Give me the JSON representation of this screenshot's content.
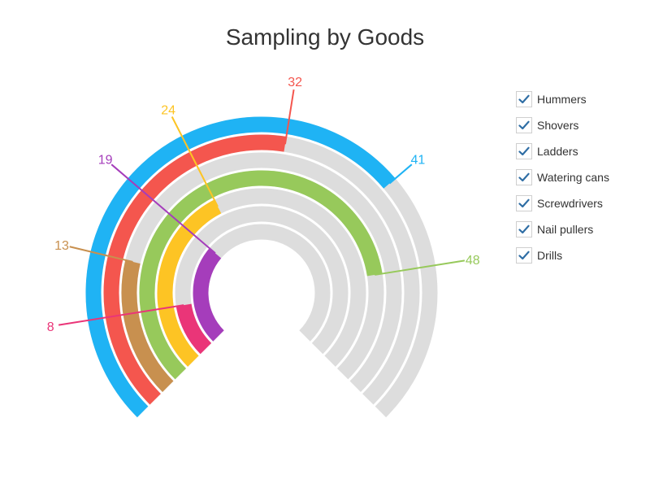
{
  "chart_data": {
    "type": "radial-bar",
    "title": "Sampling by Goods",
    "max": 60,
    "track_color": "#dddddd",
    "series": [
      {
        "name": "Hummers",
        "value": 41,
        "color": "#1fb3f4"
      },
      {
        "name": "Shovers",
        "value": 32,
        "color": "#f4564e"
      },
      {
        "name": "Ladders",
        "value": 13,
        "color": "#c8904f"
      },
      {
        "name": "Watering cans",
        "value": 48,
        "color": "#97c95b"
      },
      {
        "name": "Screwdrivers",
        "value": 24,
        "color": "#fdc424"
      },
      {
        "name": "Nail pullers",
        "value": 8,
        "color": "#ea3578"
      },
      {
        "name": "Drills",
        "value": 19,
        "color": "#a53dbb"
      }
    ],
    "legend_position": "right",
    "check_icon": "checkmark-icon",
    "check_color": "#2e6da4"
  }
}
